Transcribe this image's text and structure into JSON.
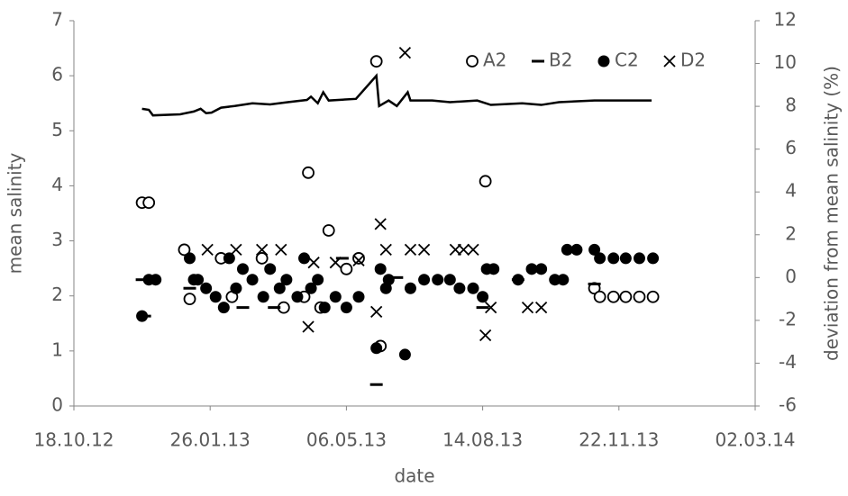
{
  "chart_data": {
    "type": "scatter",
    "y_label": "mean salinity",
    "y2_label": "deviation from mean salinity (%)",
    "x_label": "date",
    "xlim": [
      "2012-10-18",
      "2014-03-02"
    ],
    "xticks": [
      {
        "value": "2012-10-18",
        "label": "18.10.12"
      },
      {
        "value": "2013-01-26",
        "label": "26.01.13"
      },
      {
        "value": "2013-05-06",
        "label": "06.05.13"
      },
      {
        "value": "2013-08-14",
        "label": "14.08.13"
      },
      {
        "value": "2013-11-22",
        "label": "22.11.13"
      },
      {
        "value": "2014-03-02",
        "label": "02.03.14"
      }
    ],
    "ylim": [
      0,
      7
    ],
    "yticks": [
      0,
      1,
      2,
      3,
      4,
      5,
      6,
      7
    ],
    "y2lim": [
      -6,
      12
    ],
    "y2ticks": [
      -6,
      -4,
      -2,
      0,
      2,
      4,
      6,
      8,
      10,
      12
    ],
    "legend": "top-right",
    "series": [
      {
        "type": "line",
        "axis": "y",
        "color": "#000000",
        "x": [
          "2012-12-07",
          "2012-12-12",
          "2012-12-15",
          "2013-01-04",
          "2013-01-14",
          "2013-01-19",
          "2013-01-23",
          "2013-01-27",
          "2013-02-03",
          "2013-02-13",
          "2013-02-26",
          "2013-03-11",
          "2013-03-24",
          "2013-04-07",
          "2013-04-10",
          "2013-04-15",
          "2013-04-19",
          "2013-04-23",
          "2013-05-13",
          "2013-05-28",
          "2013-05-30",
          "2013-06-06",
          "2013-06-12",
          "2013-06-20",
          "2013-06-22",
          "2013-07-08",
          "2013-07-21",
          "2013-08-10",
          "2013-08-20",
          "2013-09-12",
          "2013-09-26",
          "2013-10-09",
          "2013-11-04",
          "2013-12-16"
        ],
        "values": [
          5.4,
          5.38,
          5.28,
          5.3,
          5.35,
          5.4,
          5.32,
          5.33,
          5.42,
          5.45,
          5.5,
          5.48,
          5.52,
          5.56,
          5.62,
          5.5,
          5.7,
          5.55,
          5.58,
          6.0,
          5.45,
          5.55,
          5.45,
          5.7,
          5.55,
          5.55,
          5.52,
          5.55,
          5.47,
          5.5,
          5.47,
          5.52,
          5.55,
          5.55
        ]
      },
      {
        "type": "scatter",
        "axis": "y2",
        "name": "A2",
        "marker": "circle-open",
        "color": "#000000",
        "x": [
          "2012-12-07",
          "2012-12-12",
          "2013-01-07",
          "2013-01-11",
          "2013-02-03",
          "2013-02-11",
          "2013-03-05",
          "2013-03-21",
          "2013-04-08",
          "2013-04-05",
          "2013-04-17",
          "2013-04-23",
          "2013-05-06",
          "2013-05-15",
          "2013-05-28",
          "2013-05-31",
          "2013-08-16",
          "2013-11-04",
          "2013-11-08",
          "2013-11-18",
          "2013-11-27",
          "2013-12-07",
          "2013-12-17"
        ],
        "values": [
          3.5,
          3.5,
          1.3,
          -1.0,
          0.9,
          -0.9,
          0.9,
          -1.4,
          4.9,
          -0.9,
          -1.4,
          2.2,
          0.4,
          0.9,
          10.1,
          -3.2,
          4.5,
          -0.5,
          -0.9,
          -0.9,
          -0.9,
          -0.9,
          -0.9
        ]
      },
      {
        "type": "scatter",
        "axis": "y2",
        "name": "B2",
        "marker": "dash",
        "color": "#000000",
        "x": [
          "2012-12-07",
          "2012-12-09",
          "2013-01-11",
          "2013-02-19",
          "2013-03-14",
          "2013-05-03",
          "2013-05-28",
          "2013-06-12",
          "2013-08-14",
          "2013-09-09",
          "2013-11-04"
        ],
        "values": [
          -0.1,
          -1.8,
          -0.5,
          -1.4,
          -1.4,
          0.9,
          -5.0,
          0.0,
          -1.4,
          -0.1,
          -0.3
        ]
      },
      {
        "type": "scatter",
        "axis": "y2",
        "name": "C2",
        "marker": "circle",
        "color": "#000000",
        "x": [
          "2012-12-07",
          "2012-12-12",
          "2012-12-17",
          "2013-01-11",
          "2013-01-14",
          "2013-01-17",
          "2013-01-23",
          "2013-01-30",
          "2013-02-05",
          "2013-02-09",
          "2013-02-14",
          "2013-02-19",
          "2013-02-26",
          "2013-03-06",
          "2013-03-11",
          "2013-03-18",
          "2013-03-23",
          "2013-03-31",
          "2013-04-05",
          "2013-04-10",
          "2013-04-15",
          "2013-04-20",
          "2013-04-28",
          "2013-05-06",
          "2013-05-15",
          "2013-05-28",
          "2013-05-31",
          "2013-06-04",
          "2013-06-06",
          "2013-06-18",
          "2013-06-22",
          "2013-07-02",
          "2013-07-12",
          "2013-07-21",
          "2013-07-28",
          "2013-08-07",
          "2013-08-14",
          "2013-08-17",
          "2013-08-22",
          "2013-09-09",
          "2013-09-19",
          "2013-09-26",
          "2013-10-06",
          "2013-10-12",
          "2013-10-15",
          "2013-10-22",
          "2013-11-04",
          "2013-11-08",
          "2013-11-18",
          "2013-11-27",
          "2013-12-07",
          "2013-12-17"
        ],
        "values": [
          -1.8,
          -0.1,
          -0.1,
          0.9,
          -0.1,
          -0.1,
          -0.5,
          -0.9,
          -1.4,
          0.9,
          -0.5,
          0.4,
          -0.1,
          -0.9,
          0.4,
          -0.5,
          -0.1,
          -0.9,
          0.9,
          -0.5,
          -0.1,
          -1.4,
          -0.9,
          -1.4,
          -0.9,
          -3.3,
          0.4,
          -0.5,
          -0.1,
          -3.6,
          -0.5,
          -0.1,
          -0.1,
          -0.1,
          -0.5,
          -0.5,
          -0.9,
          0.4,
          0.4,
          -0.1,
          0.4,
          0.4,
          -0.1,
          -0.1,
          1.3,
          1.3,
          1.3,
          0.9,
          0.9,
          0.9,
          0.9,
          0.9
        ]
      },
      {
        "type": "scatter",
        "axis": "y2",
        "name": "D2",
        "marker": "cross",
        "color": "#000000",
        "x": [
          "2013-01-24",
          "2013-02-14",
          "2013-03-05",
          "2013-03-19",
          "2013-04-08",
          "2013-04-12",
          "2013-04-28",
          "2013-05-15",
          "2013-05-28",
          "2013-05-31",
          "2013-06-04",
          "2013-06-18",
          "2013-06-22",
          "2013-07-02",
          "2013-07-25",
          "2013-07-31",
          "2013-08-07",
          "2013-08-16",
          "2013-08-20",
          "2013-09-16",
          "2013-09-26"
        ],
        "values": [
          1.3,
          1.3,
          1.3,
          1.3,
          -2.3,
          0.7,
          0.7,
          0.8,
          -1.6,
          2.5,
          1.3,
          10.5,
          1.3,
          1.3,
          1.3,
          1.3,
          1.3,
          -2.7,
          -1.4,
          -1.4,
          -1.4
        ]
      }
    ]
  }
}
